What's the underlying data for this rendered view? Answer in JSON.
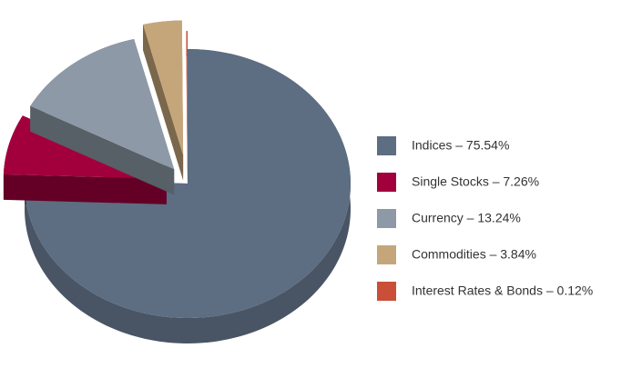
{
  "chart_data": {
    "type": "pie",
    "categories": [
      "Indices – 75.54%",
      "Single Stocks – 7.26%",
      "Currency – 13.24%",
      "Commodities – 3.84%",
      "Interest Rates & Bonds – 0.12%"
    ],
    "values": [
      75.54,
      7.26,
      13.24,
      3.84,
      0.12
    ],
    "colors": [
      "#5d6d82",
      "#a2003c",
      "#8d99a6",
      "#c5a67b",
      "#c94f38"
    ],
    "exploded": [
      false,
      true,
      true,
      true,
      true
    ],
    "legend": "right"
  }
}
